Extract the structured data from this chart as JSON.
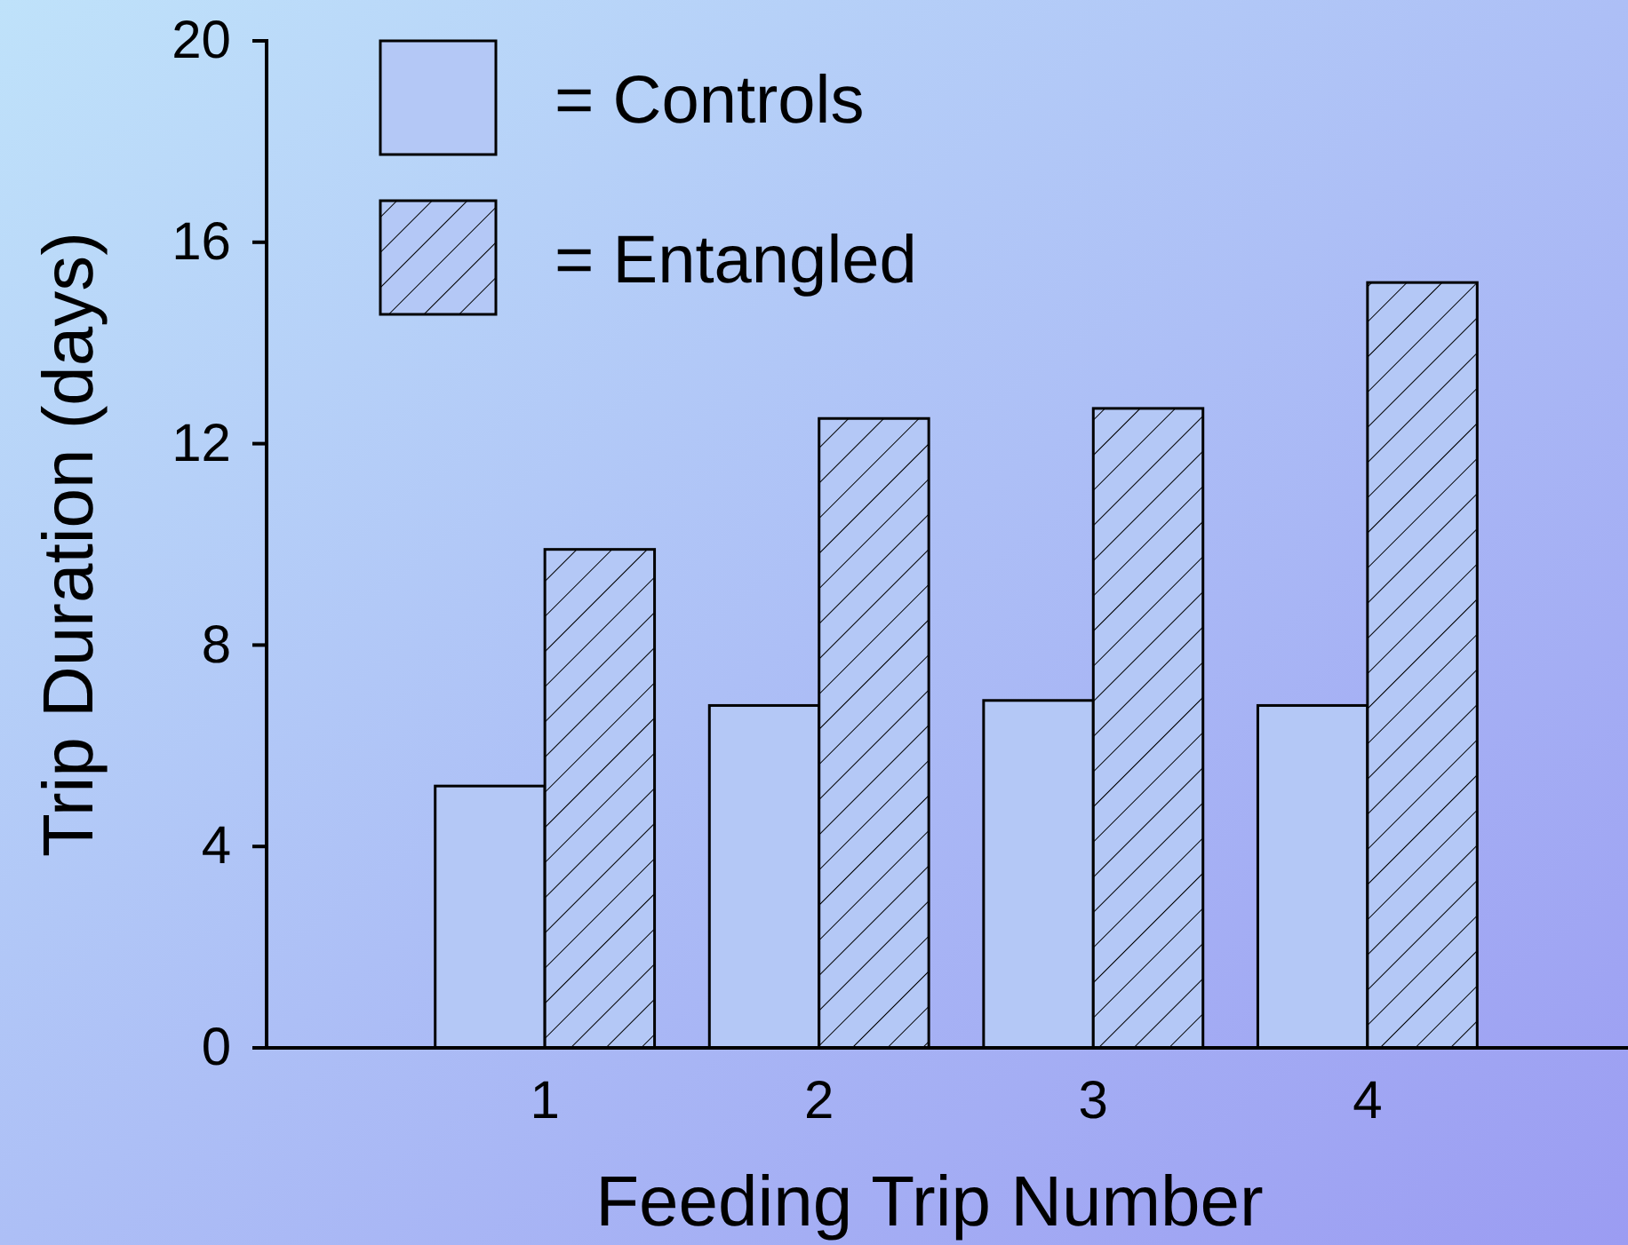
{
  "chart_data": {
    "type": "bar",
    "xlabel": "Feeding Trip Number",
    "ylabel": "Trip Duration (days)",
    "categories": [
      "1",
      "2",
      "3",
      "4"
    ],
    "series": [
      {
        "name": "= Controls",
        "color": "#b4c8f6",
        "values": [
          5.2,
          6.8,
          6.9,
          6.8
        ]
      },
      {
        "name": "= Entangled",
        "color": "#b4c8f6",
        "values": [
          9.9,
          12.5,
          12.7,
          15.2
        ]
      }
    ],
    "ylim": [
      0,
      20
    ],
    "yticks": [
      0,
      4,
      8,
      12,
      16,
      20
    ],
    "grid": false,
    "legend": "top left"
  }
}
